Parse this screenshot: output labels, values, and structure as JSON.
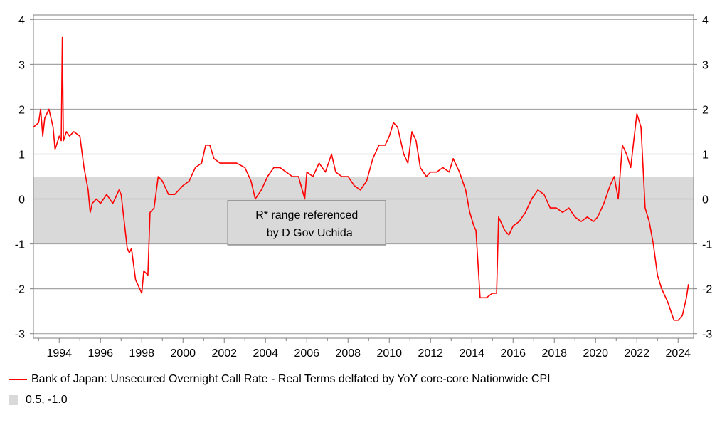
{
  "chart_data": {
    "type": "line",
    "y_ticks": [
      4,
      3,
      2,
      1,
      0,
      -1,
      -2,
      -3
    ],
    "y_tick_labels": [
      "4",
      "3",
      "2",
      "1",
      "0",
      "-1",
      "-2",
      "-3"
    ],
    "ylim": [
      -3.1,
      4.1
    ],
    "xlim": [
      1992.75,
      2024.75
    ],
    "x_ticks": [
      1994,
      1996,
      1998,
      2000,
      2002,
      2004,
      2006,
      2008,
      2010,
      2012,
      2014,
      2016,
      2018,
      2020,
      2022,
      2024
    ],
    "x_tick_labels": [
      "1994",
      "1996",
      "1998",
      "2000",
      "2002",
      "2004",
      "2006",
      "2008",
      "2010",
      "2012",
      "2014",
      "2016",
      "2018",
      "2020",
      "2022",
      "2024"
    ],
    "grid": true,
    "band": {
      "name": "0.5, -1.0",
      "upper": 0.5,
      "lower": -1.0,
      "color": "#d9d9d9"
    },
    "annotation": {
      "lines": [
        "R* range referenced",
        "by D Gov Uchida"
      ],
      "x": 2006.0,
      "y": -0.53
    },
    "series": [
      {
        "name": "Bank of Japan: Unsecured Overnight Call Rate - Real Terms delfated by YoY core-core Nationwide CPI",
        "color": "#ff0000",
        "x": [
          1992.75,
          1993.0,
          1993.1,
          1993.2,
          1993.3,
          1993.5,
          1993.7,
          1993.8,
          1994.0,
          1994.1,
          1994.15,
          1994.2,
          1994.35,
          1994.5,
          1994.7,
          1995.0,
          1995.2,
          1995.4,
          1995.5,
          1995.6,
          1995.8,
          1996.0,
          1996.3,
          1996.6,
          1996.9,
          1997.0,
          1997.3,
          1997.4,
          1997.5,
          1997.7,
          1997.9,
          1998.0,
          1998.1,
          1998.3,
          1998.4,
          1998.6,
          1998.8,
          1999.0,
          1999.3,
          1999.6,
          2000.0,
          2000.3,
          2000.6,
          2000.9,
          2001.1,
          2001.3,
          2001.5,
          2001.8,
          2002.2,
          2002.6,
          2003.0,
          2003.3,
          2003.5,
          2003.8,
          2004.1,
          2004.4,
          2004.7,
          2005.0,
          2005.3,
          2005.6,
          2005.9,
          2006.0,
          2006.3,
          2006.6,
          2006.9,
          2007.2,
          2007.4,
          2007.7,
          2008.0,
          2008.3,
          2008.6,
          2008.9,
          2009.2,
          2009.5,
          2009.8,
          2010.0,
          2010.2,
          2010.4,
          2010.7,
          2010.9,
          2011.1,
          2011.3,
          2011.5,
          2011.8,
          2012.0,
          2012.3,
          2012.6,
          2012.9,
          2013.1,
          2013.4,
          2013.7,
          2013.9,
          2014.1,
          2014.2,
          2014.4,
          2014.7,
          2015.0,
          2015.2,
          2015.3,
          2015.6,
          2015.8,
          2016.0,
          2016.3,
          2016.6,
          2016.9,
          2017.2,
          2017.5,
          2017.8,
          2018.1,
          2018.4,
          2018.7,
          2019.0,
          2019.3,
          2019.6,
          2019.9,
          2020.1,
          2020.4,
          2020.7,
          2020.9,
          2021.1,
          2021.3,
          2021.5,
          2021.7,
          2021.9,
          2022.0,
          2022.2,
          2022.4,
          2022.6,
          2022.8,
          2023.0,
          2023.2,
          2023.5,
          2023.8,
          2024.0,
          2024.2,
          2024.4,
          2024.5
        ],
        "y": [
          1.6,
          1.7,
          2.0,
          1.4,
          1.8,
          2.0,
          1.6,
          1.1,
          1.4,
          1.3,
          3.6,
          1.3,
          1.5,
          1.4,
          1.5,
          1.4,
          0.7,
          0.2,
          -0.3,
          -0.1,
          0.0,
          -0.1,
          0.1,
          -0.1,
          0.2,
          0.1,
          -1.1,
          -1.2,
          -1.1,
          -1.8,
          -2.0,
          -2.1,
          -1.6,
          -1.7,
          -0.3,
          -0.2,
          0.5,
          0.4,
          0.1,
          0.1,
          0.3,
          0.4,
          0.7,
          0.8,
          1.2,
          1.2,
          0.9,
          0.8,
          0.8,
          0.8,
          0.7,
          0.4,
          0.0,
          0.2,
          0.5,
          0.7,
          0.7,
          0.6,
          0.5,
          0.5,
          0.0,
          0.6,
          0.5,
          0.8,
          0.6,
          1.0,
          0.6,
          0.5,
          0.5,
          0.3,
          0.2,
          0.4,
          0.9,
          1.2,
          1.2,
          1.4,
          1.7,
          1.6,
          1.0,
          0.8,
          1.5,
          1.3,
          0.7,
          0.5,
          0.6,
          0.6,
          0.7,
          0.6,
          0.9,
          0.6,
          0.2,
          -0.3,
          -0.6,
          -0.7,
          -2.2,
          -2.2,
          -2.1,
          -2.1,
          -0.4,
          -0.7,
          -0.8,
          -0.6,
          -0.5,
          -0.3,
          0.0,
          0.2,
          0.1,
          -0.2,
          -0.2,
          -0.3,
          -0.2,
          -0.4,
          -0.5,
          -0.4,
          -0.5,
          -0.4,
          -0.1,
          0.3,
          0.5,
          0.0,
          1.2,
          1.0,
          0.7,
          1.5,
          1.9,
          1.6,
          -0.2,
          -0.5,
          -1.0,
          -1.7,
          -2.0,
          -2.3,
          -2.7,
          -2.7,
          -2.6,
          -2.2,
          -1.9
        ]
      }
    ]
  }
}
